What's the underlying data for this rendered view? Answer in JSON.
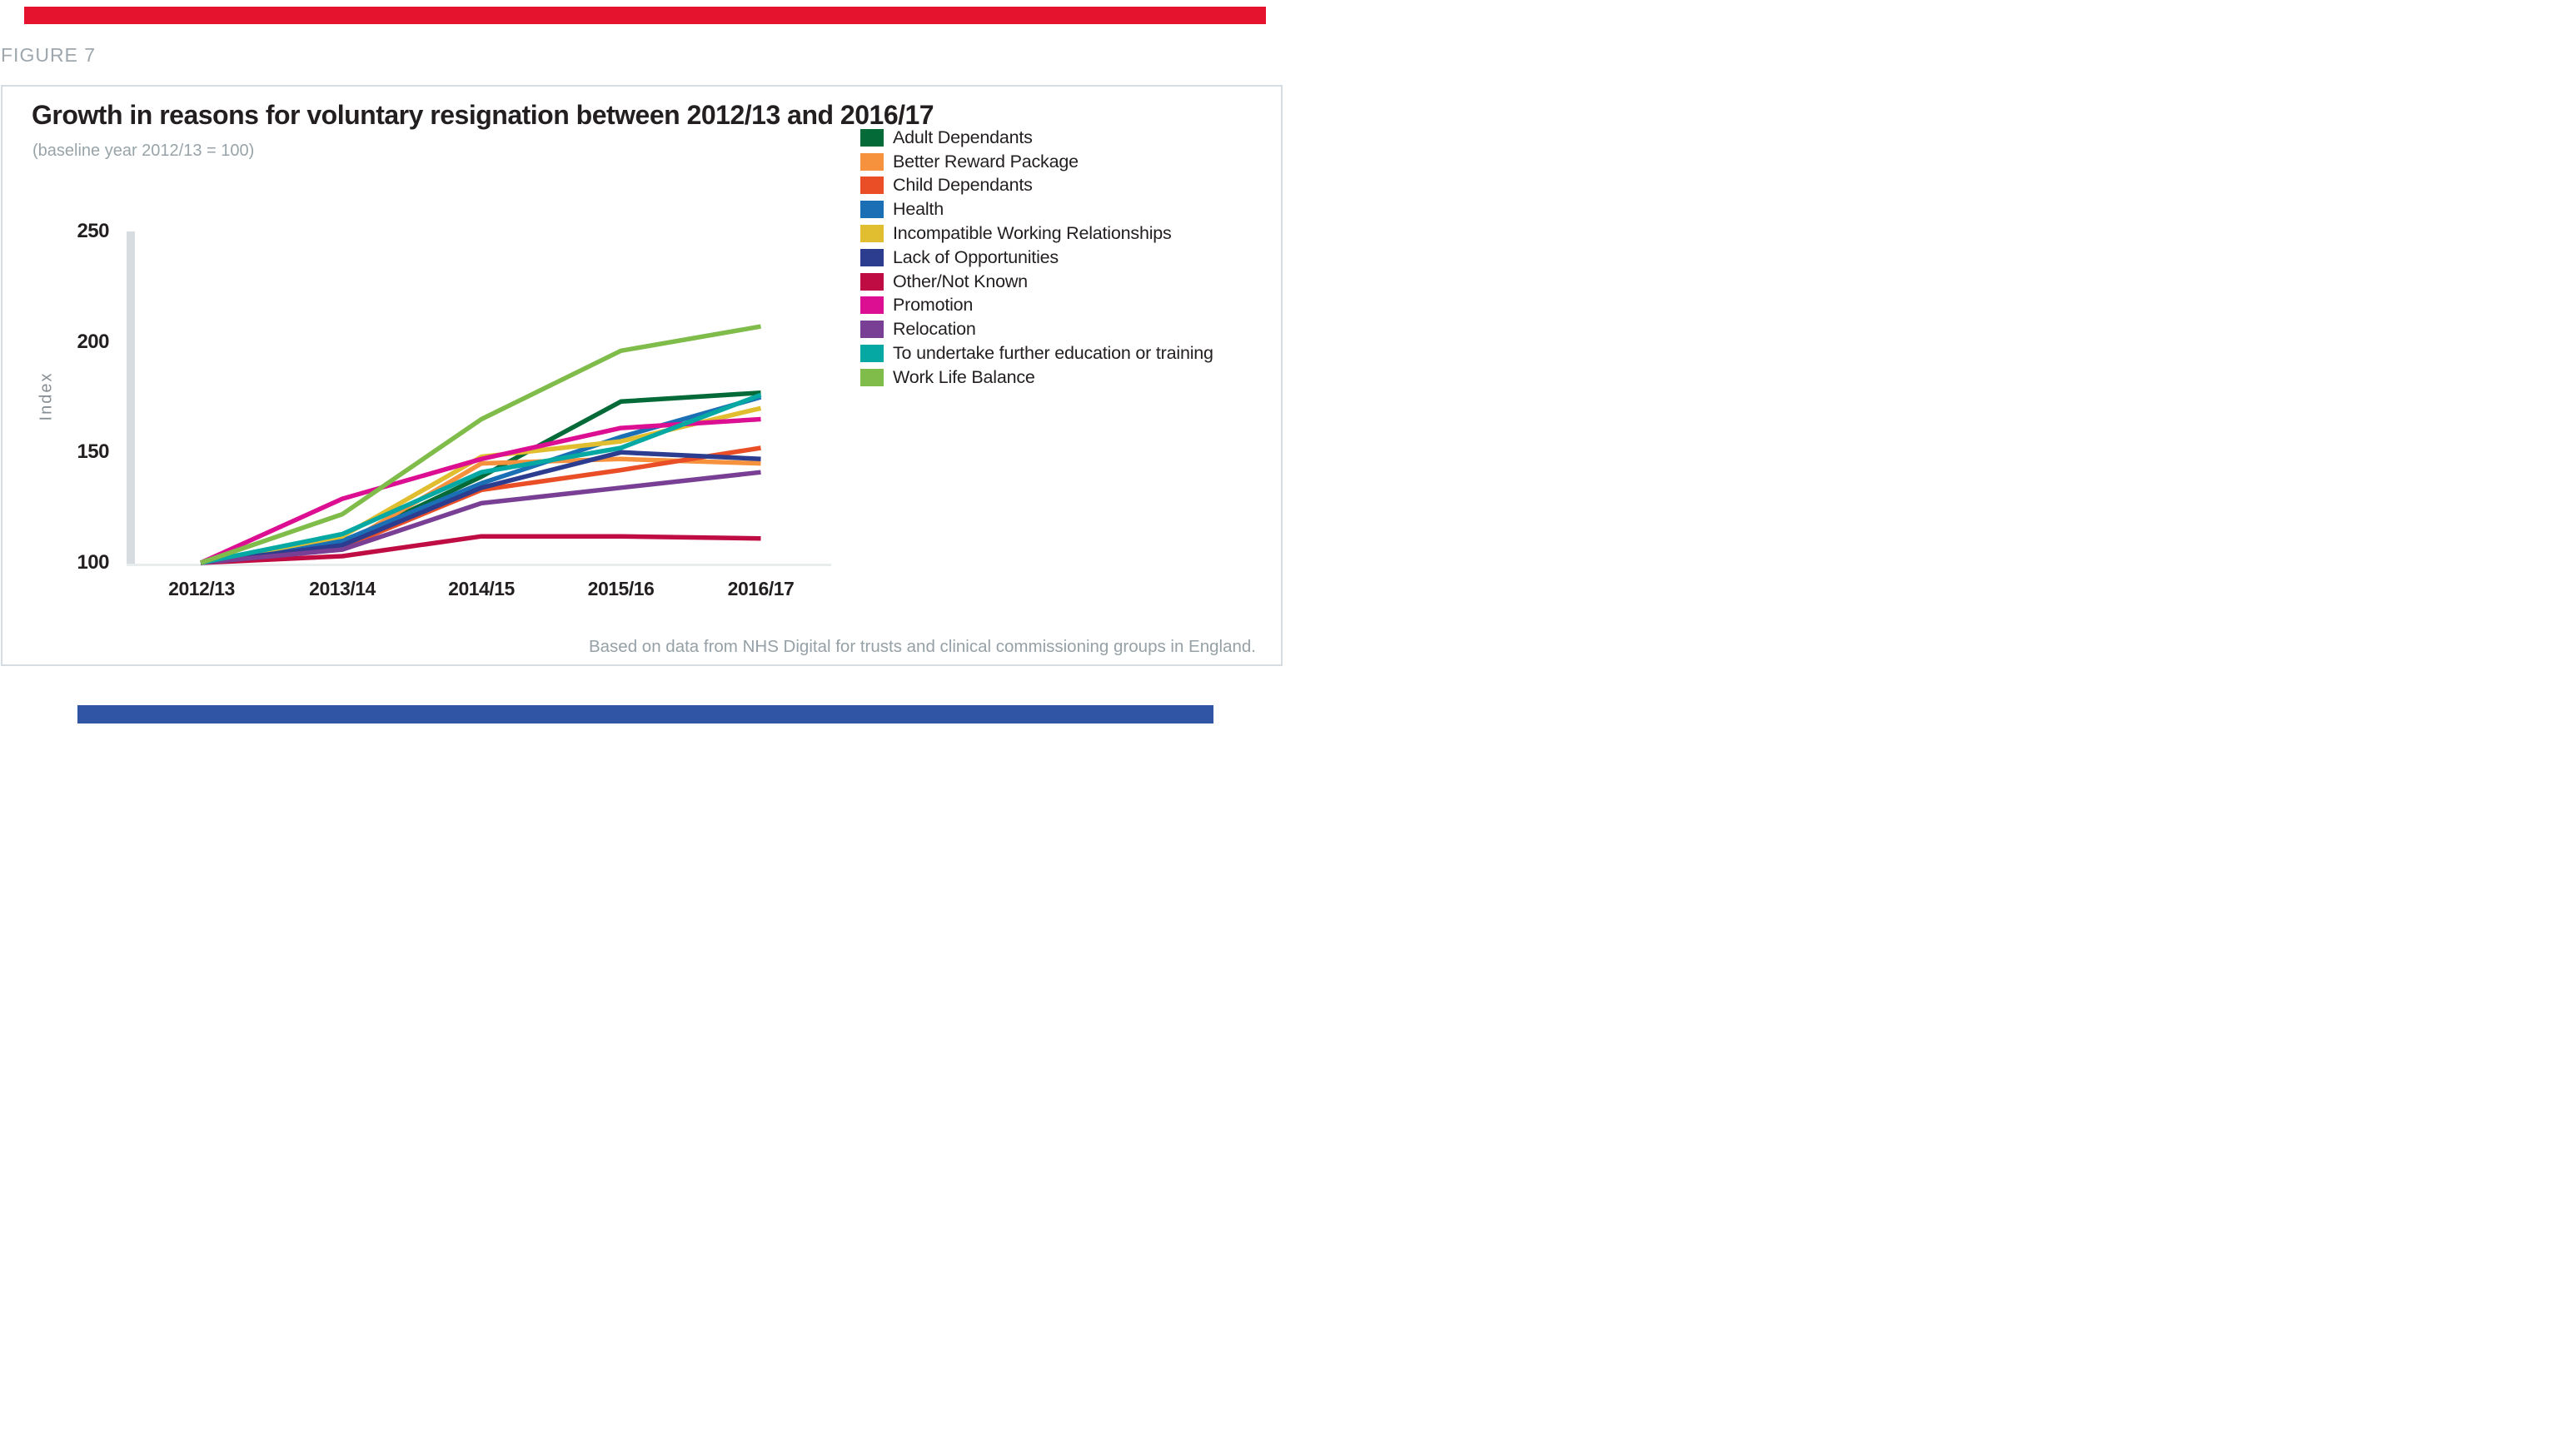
{
  "figure_label": "FIGURE 7",
  "decor": {
    "top_bar_color": "#e6132f",
    "bottom_bar_color": "#2f55a4",
    "box_border_color": "#d5dde2",
    "axis_bar_color": "#d6dce0",
    "axis_line_color": "#e8eced"
  },
  "header": {
    "title": "Growth in reasons for voluntary resignation between 2012/13 and 2016/17",
    "subtitle": "(baseline year 2012/13 = 100)"
  },
  "y_axis": {
    "label": "Index",
    "ticks": [
      "250",
      "200",
      "150",
      "100"
    ]
  },
  "x_axis": {
    "ticks": [
      "2012/13",
      "2013/14",
      "2014/15",
      "2015/16",
      "2016/17"
    ]
  },
  "attribution": "Based on data from NHS Digital for trusts and clinical commissioning groups in England.",
  "chart_data": {
    "type": "line",
    "title": "Growth in reasons for voluntary resignation between 2012/13 and 2016/17",
    "subtitle": "(baseline year 2012/13 = 100)",
    "xlabel": "",
    "ylabel": "Index",
    "ylim": [
      100,
      250
    ],
    "y_tick_values": [
      100,
      150,
      200,
      250
    ],
    "grid": false,
    "legend_position": "upper right, vertical list",
    "categories": [
      "2012/13",
      "2013/14",
      "2014/15",
      "2015/16",
      "2016/17"
    ],
    "series": [
      {
        "name": "Adult Dependants",
        "color": "#046a38",
        "values": [
          100,
          109,
          139,
          173,
          177
        ]
      },
      {
        "name": "Better Reward Package",
        "color": "#f6913d",
        "values": [
          100,
          108,
          145,
          147,
          145
        ]
      },
      {
        "name": "Child Dependants",
        "color": "#e94e26",
        "values": [
          100,
          107,
          133,
          142,
          152
        ]
      },
      {
        "name": "Health",
        "color": "#1a6fb5",
        "values": [
          100,
          110,
          136,
          157,
          175
        ]
      },
      {
        "name": "Incompatible Working Relationships",
        "color": "#e0be30",
        "values": [
          100,
          112,
          148,
          155,
          170
        ]
      },
      {
        "name": "Lack of Opportunities",
        "color": "#2c3c8f",
        "values": [
          100,
          108,
          134,
          150,
          147
        ]
      },
      {
        "name": "Other/Not Known",
        "color": "#bf0d43",
        "values": [
          100,
          103,
          112,
          112,
          111
        ]
      },
      {
        "name": "Promotion",
        "color": "#dc0e92",
        "values": [
          100,
          129,
          147,
          161,
          165
        ]
      },
      {
        "name": "Relocation",
        "color": "#793f94",
        "values": [
          100,
          106,
          127,
          134,
          141
        ]
      },
      {
        "name": "To undertake further education or training",
        "color": "#05a8a2",
        "values": [
          100,
          113,
          141,
          152,
          176
        ]
      },
      {
        "name": "Work Life Balance",
        "color": "#7fbc4a",
        "values": [
          100,
          122,
          165,
          196,
          207
        ]
      }
    ]
  }
}
